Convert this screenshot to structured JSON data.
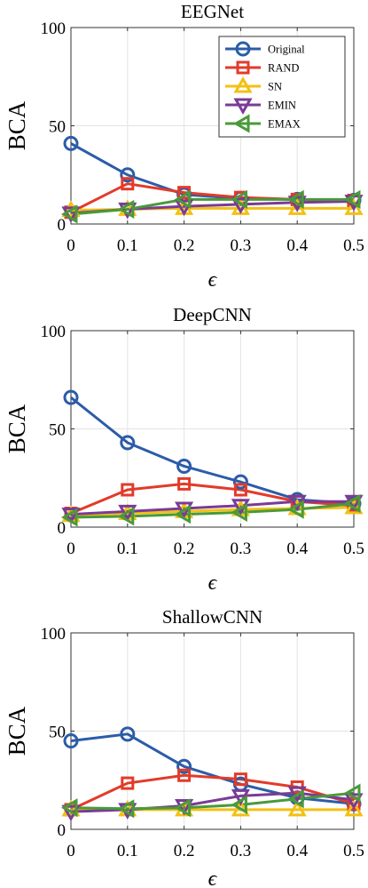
{
  "colors": {
    "Original": "#2b5ca8",
    "RAND": "#e23b2a",
    "SN": "#f2c012",
    "EMIN": "#7a3b96",
    "EMAX": "#4a9a3a"
  },
  "markers": {
    "Original": "circle",
    "RAND": "square",
    "SN": "triangle-up",
    "EMIN": "triangle-down",
    "EMAX": "triangle-left"
  },
  "chart_data": [
    {
      "type": "line",
      "title": "EEGNet",
      "xlabel": "ϵ",
      "ylabel": "BCA",
      "x": [
        0,
        0.1,
        0.2,
        0.3,
        0.4,
        0.5
      ],
      "xticks": [
        "0",
        "0.1",
        "0.2",
        "0.3",
        "0.4",
        "0.5"
      ],
      "ylim": [
        0,
        100
      ],
      "yticks": [
        "0",
        "50",
        "100"
      ],
      "grid": true,
      "legend": "top-right",
      "series": [
        {
          "name": "Original",
          "values": [
            41,
            25,
            15,
            13,
            12.5,
            12
          ]
        },
        {
          "name": "RAND",
          "values": [
            6,
            20.5,
            16,
            13.5,
            12.5,
            12
          ]
        },
        {
          "name": "SN",
          "values": [
            7,
            7.5,
            8,
            8,
            8,
            8
          ]
        },
        {
          "name": "EMIN",
          "values": [
            5.5,
            7.5,
            9,
            10,
            11,
            11.5
          ]
        },
        {
          "name": "EMAX",
          "values": [
            5,
            7.5,
            12.5,
            12.5,
            12.5,
            12.5
          ]
        }
      ]
    },
    {
      "type": "line",
      "title": "DeepCNN",
      "xlabel": "ϵ",
      "ylabel": "BCA",
      "x": [
        0,
        0.1,
        0.2,
        0.3,
        0.4,
        0.5
      ],
      "xticks": [
        "0",
        "0.1",
        "0.2",
        "0.3",
        "0.4",
        "0.5"
      ],
      "ylim": [
        0,
        100
      ],
      "yticks": [
        "0",
        "50",
        "100"
      ],
      "grid": true,
      "series": [
        {
          "name": "Original",
          "values": [
            66,
            43,
            31,
            23,
            14,
            12
          ]
        },
        {
          "name": "RAND",
          "values": [
            7,
            19,
            22,
            19,
            13,
            11
          ]
        },
        {
          "name": "SN",
          "values": [
            6,
            7,
            8,
            9,
            9.5,
            10
          ]
        },
        {
          "name": "EMIN",
          "values": [
            6.5,
            8,
            9.5,
            11,
            13,
            13
          ]
        },
        {
          "name": "EMAX",
          "values": [
            5,
            5.5,
            6.5,
            7.5,
            9,
            12
          ]
        }
      ]
    },
    {
      "type": "line",
      "title": "ShallowCNN",
      "xlabel": "ϵ",
      "ylabel": "BCA",
      "x": [
        0,
        0.1,
        0.2,
        0.3,
        0.4,
        0.5
      ],
      "xticks": [
        "0",
        "0.1",
        "0.2",
        "0.3",
        "0.4",
        "0.5"
      ],
      "ylim": [
        0,
        100
      ],
      "yticks": [
        "0",
        "50",
        "100"
      ],
      "grid": true,
      "series": [
        {
          "name": "Original",
          "values": [
            45,
            48.5,
            32,
            23,
            16,
            13
          ]
        },
        {
          "name": "RAND",
          "values": [
            10,
            23.5,
            27.5,
            25.5,
            21.5,
            13
          ]
        },
        {
          "name": "SN",
          "values": [
            10,
            10,
            10,
            10,
            10,
            10
          ]
        },
        {
          "name": "EMIN",
          "values": [
            9,
            10,
            12,
            17,
            18.5,
            15
          ]
        },
        {
          "name": "EMAX",
          "values": [
            11,
            10.5,
            11,
            12.5,
            15.5,
            18.5
          ]
        }
      ]
    }
  ]
}
